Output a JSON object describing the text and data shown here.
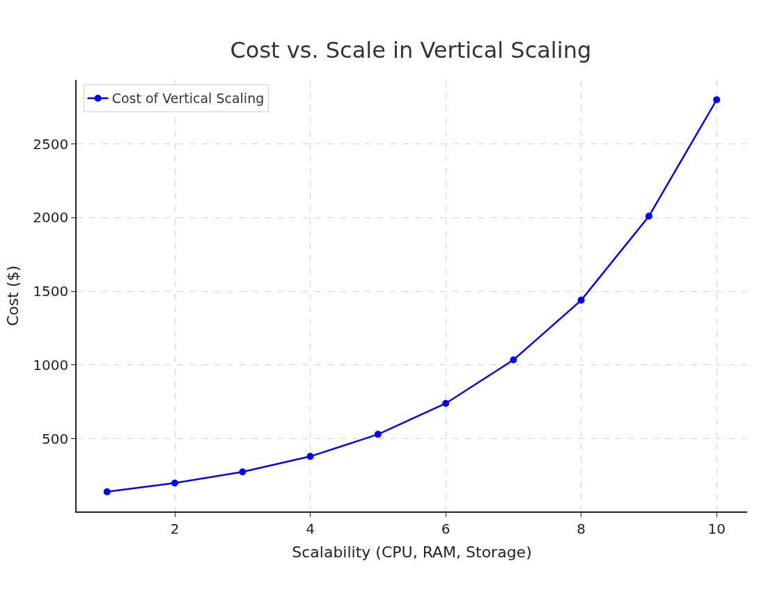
{
  "chart_data": {
    "type": "line",
    "title": "Cost vs. Scale in Vertical Scaling",
    "xlabel": "Scalability (CPU, RAM, Storage)",
    "ylabel": "Cost ($)",
    "x": [
      1,
      2,
      3,
      4,
      5,
      6,
      7,
      8,
      9,
      10
    ],
    "series": [
      {
        "name": "Cost of Vertical Scaling",
        "color": "#0000ff",
        "values": [
          140,
          200,
          275,
          380,
          530,
          740,
          1035,
          1440,
          2010,
          2800
        ]
      }
    ],
    "xlim": [
      0.55,
      10.45
    ],
    "xticks": [
      2,
      4,
      6,
      8,
      10
    ],
    "ylim": [
      7,
      2933
    ],
    "yticks": [
      500,
      1000,
      1500,
      2000,
      2500
    ],
    "grid": true,
    "legend": "top left",
    "marker": "circle",
    "line_style": "solid"
  }
}
